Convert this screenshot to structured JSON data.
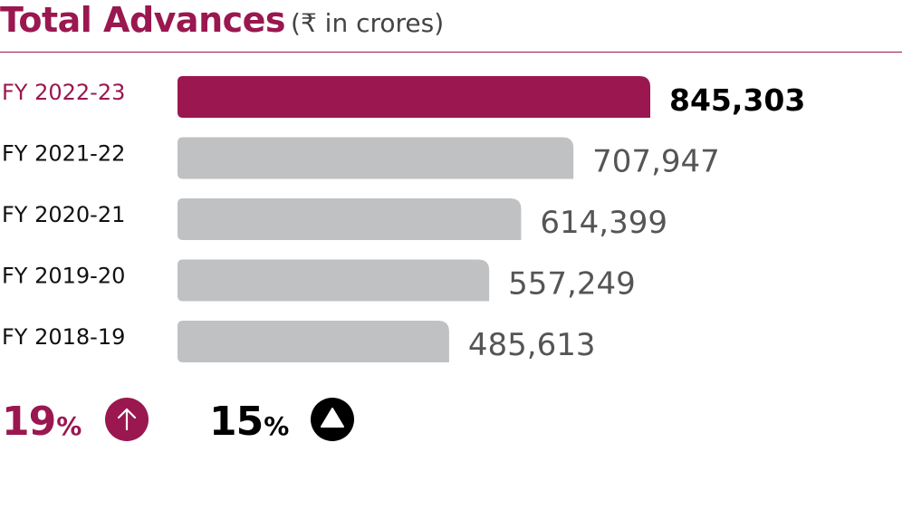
{
  "title": {
    "main": "Total Advances",
    "unit": "(₹ in crores)"
  },
  "chart_data": {
    "type": "bar",
    "orientation": "horizontal",
    "title": "Total Advances",
    "unit": "(₹ in crores)",
    "categories": [
      "FY 2022-23",
      "FY 2021-22",
      "FY 2020-21",
      "FY 2019-20",
      "FY 2018-19"
    ],
    "values": [
      845303,
      707947,
      614399,
      557249,
      485613
    ],
    "value_labels": [
      "845,303",
      "707,947",
      "614,399",
      "557,249",
      "485,613"
    ],
    "highlight_index": 0,
    "xlim": [
      0,
      845303
    ],
    "grid": false,
    "legend": "none"
  },
  "colors": {
    "accent": "#9a1750",
    "bar_default": "#c0c1c3",
    "label_default": "#111111",
    "value_default": "#555555",
    "value_highlight": "#000000"
  },
  "footer": {
    "stat_a": {
      "value": "19",
      "unit": "%",
      "icon": "arrow-up-circle-icon"
    },
    "stat_b": {
      "value": "15",
      "unit": "%",
      "icon": "triangle-up-circle-icon"
    }
  }
}
